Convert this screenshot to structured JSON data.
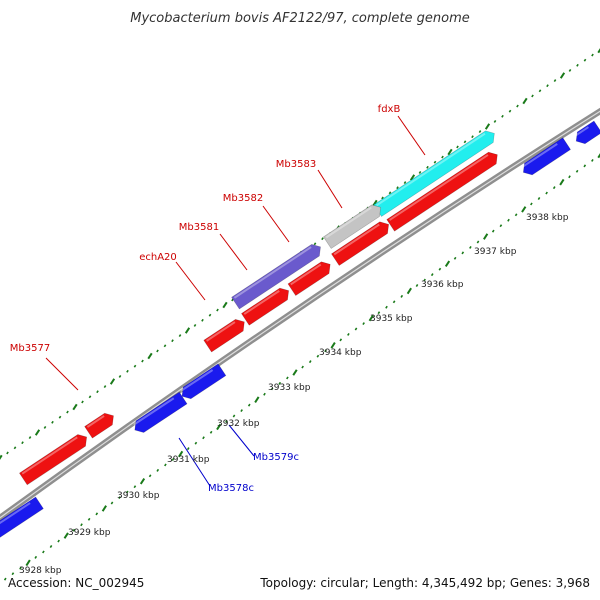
{
  "title": "Mycobacterium bovis AF2122/97, complete genome",
  "footer": {
    "accession": "Accession: NC_002945",
    "topology": "Topology: circular; Length: 4,345,492 bp; Genes: 3,968"
  },
  "colors": {
    "backbone": "#8a8a8a",
    "tick": "#1a7a1a",
    "forward_label": "#cc0000",
    "reverse_label": "#0000cc",
    "red": "#ee1111",
    "blue": "#1a1aee",
    "cyan": "#22eeee",
    "gray": "#c4c4c4",
    "purple": "#6a5acd"
  },
  "tick_labels": [
    "3928 kbp",
    "3929 kbp",
    "3930 kbp",
    "3931 kbp",
    "3932 kbp",
    "3933 kbp",
    "3934 kbp",
    "3935 kbp",
    "3936 kbp",
    "3937 kbp",
    "3938 kbp"
  ],
  "gene_labels": [
    {
      "text": "Mb3577",
      "strand": "forward"
    },
    {
      "text": "echA20",
      "strand": "forward"
    },
    {
      "text": "Mb3581",
      "strand": "forward"
    },
    {
      "text": "Mb3582",
      "strand": "forward"
    },
    {
      "text": "Mb3583",
      "strand": "forward"
    },
    {
      "text": "fdxB",
      "strand": "forward"
    },
    {
      "text": "Mb3578c",
      "strand": "reverse"
    },
    {
      "text": "Mb3579c",
      "strand": "reverse"
    }
  ]
}
